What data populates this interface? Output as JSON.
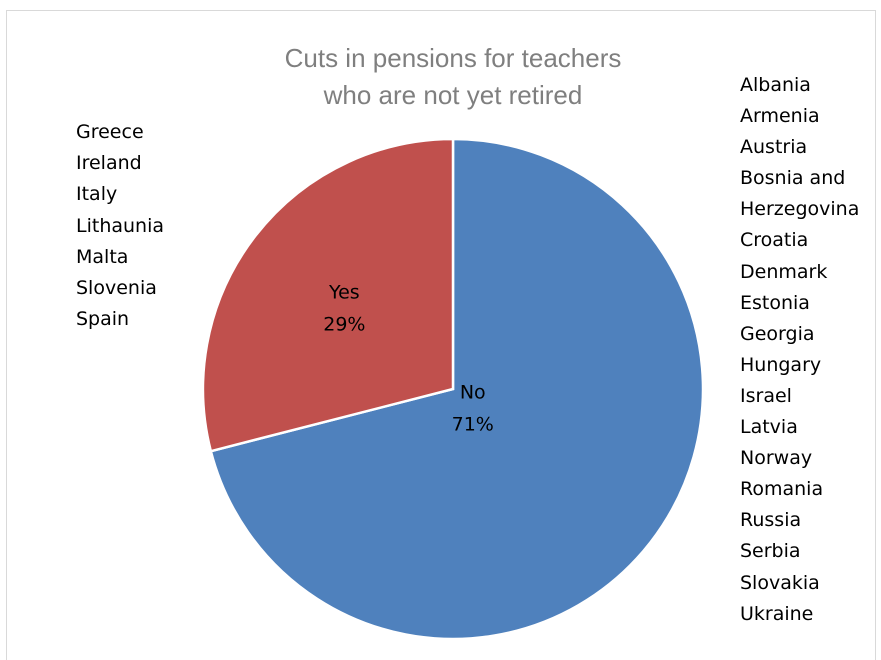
{
  "chart_data": {
    "type": "pie",
    "title": [
      "Cuts in pensions for teachers",
      "who are not yet retired"
    ],
    "slices": [
      {
        "label": "Yes",
        "value": 29,
        "value_label": "29%",
        "color": "#c0504d"
      },
      {
        "label": "No",
        "value": 71,
        "value_label": "71%",
        "color": "#4f81bd"
      }
    ],
    "annotations": {
      "yes_countries": [
        "Greece",
        "Ireland",
        "Italy",
        "Lithaunia",
        "Malta",
        "Slovenia",
        "Spain"
      ],
      "no_countries": [
        "Albania",
        "Armenia",
        "Austria",
        "Bosnia and",
        "Herzegovina",
        "Croatia",
        "Denmark",
        "Estonia",
        "Georgia",
        "Hungary",
        "Israel",
        "Latvia",
        "Norway",
        "Romania",
        "Russia",
        "Serbia",
        "Slovakia",
        "Ukraine"
      ]
    },
    "legend": "none"
  },
  "colors": {
    "title": "#7f7f7f",
    "slice_border": "#ffffff"
  }
}
